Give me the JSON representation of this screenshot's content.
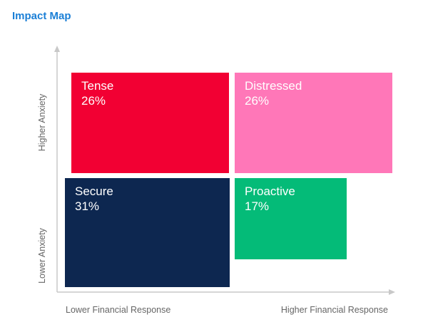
{
  "chart_data": {
    "type": "quadrant",
    "title": "Impact Map",
    "x_labels": {
      "low": "Lower Financial Response",
      "high": "Higher Financial Response"
    },
    "y_labels": {
      "low": "Lower Anxiety",
      "high": "Higher Anxiety"
    },
    "quadrants": [
      {
        "name": "Tense",
        "value": "26%",
        "position": "top-left",
        "color": "#f20033"
      },
      {
        "name": "Distressed",
        "value": "26%",
        "position": "top-right",
        "color": "#ff77b8"
      },
      {
        "name": "Secure",
        "value": "31%",
        "position": "bottom-left",
        "color": "#0d2750"
      },
      {
        "name": "Proactive",
        "value": "17%",
        "position": "bottom-right",
        "color": "#04bb78"
      }
    ],
    "axis_color": "#c8c8c8"
  }
}
